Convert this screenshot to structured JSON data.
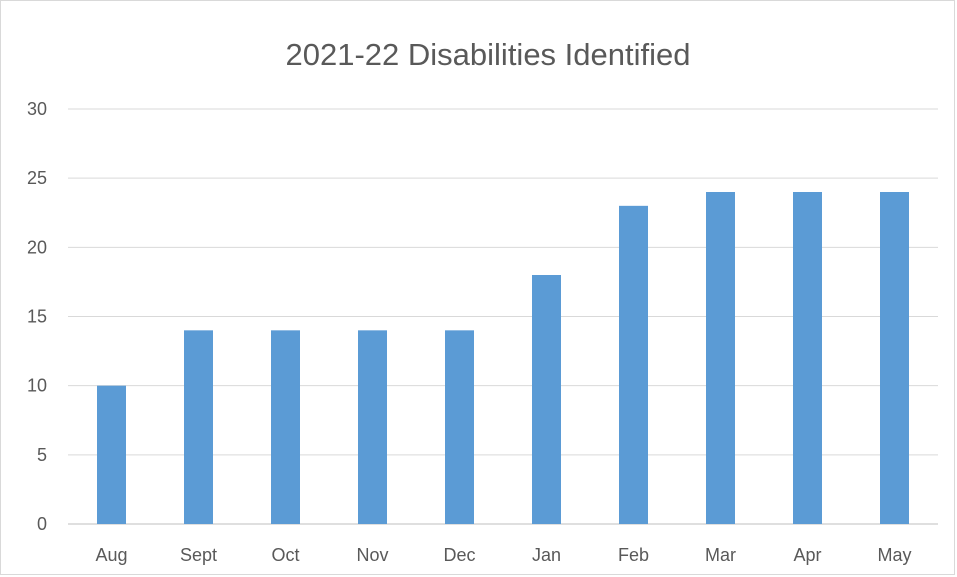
{
  "chart_data": {
    "type": "bar",
    "title": "2021-22 Disabilities Identified",
    "xlabel": "",
    "ylabel": "",
    "categories": [
      "Aug",
      "Sept",
      "Oct",
      "Nov",
      "Dec",
      "Jan",
      "Feb",
      "Mar",
      "Apr",
      "May"
    ],
    "values": [
      10,
      14,
      14,
      14,
      14,
      18,
      23,
      24,
      24,
      24
    ],
    "ylim": [
      0,
      30
    ],
    "yticks": [
      0,
      5,
      10,
      15,
      20,
      25,
      30
    ],
    "grid": true,
    "legend": "none",
    "bar_color": "#5b9bd5"
  }
}
